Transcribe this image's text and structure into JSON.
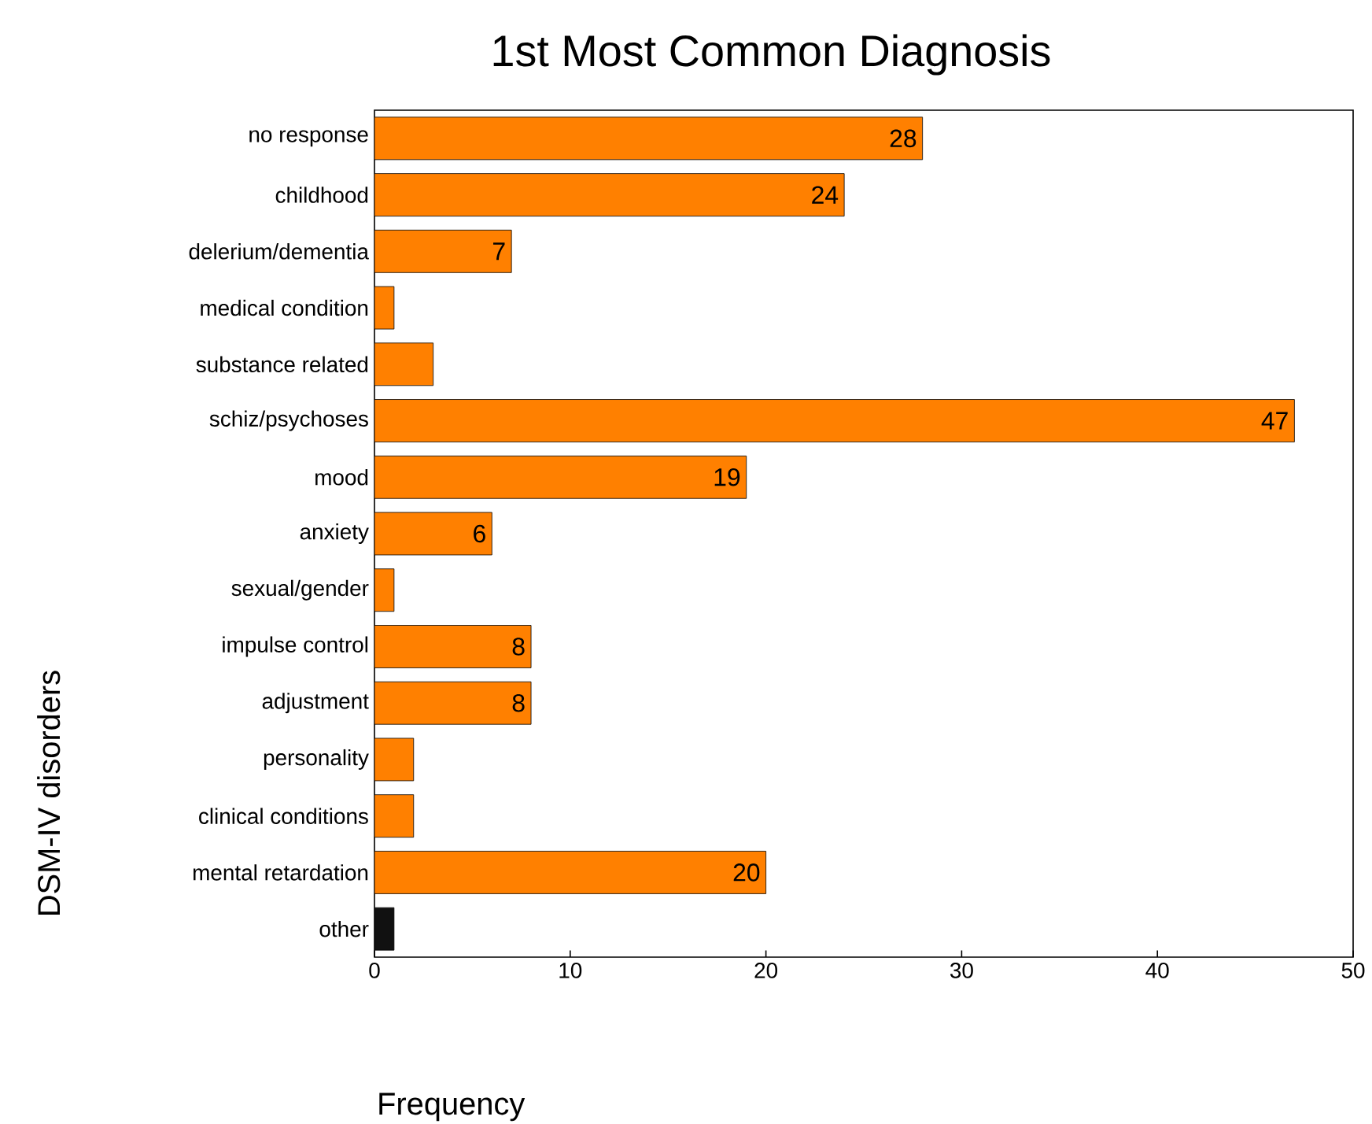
{
  "chart_data": {
    "type": "bar",
    "orientation": "horizontal",
    "title": "1st Most Common Diagnosis",
    "xlabel": "Frequency",
    "ylabel": "DSM-IV disorders",
    "categories": [
      "no response",
      "childhood",
      "delerium/dementia",
      "medical condition",
      "substance related",
      "schiz/psychoses",
      "mood",
      "anxiety",
      "sexual/gender",
      "impulse control",
      "adjustment",
      "personality",
      "clinical conditions",
      "mental retardation",
      "other"
    ],
    "values": [
      28,
      24,
      7,
      1,
      3,
      47,
      19,
      6,
      1,
      8,
      8,
      2,
      2,
      20,
      1
    ],
    "value_labels": [
      "28",
      "24",
      "7",
      null,
      null,
      "47",
      "19",
      "6",
      null,
      "8",
      "8",
      null,
      null,
      "20",
      null
    ],
    "colors": [
      "#ff8000",
      "#ff8000",
      "#ff8000",
      "#ff8000",
      "#ff8000",
      "#ff8000",
      "#ff8000",
      "#ff8000",
      "#ff8000",
      "#ff8000",
      "#ff8000",
      "#ff8000",
      "#ff8000",
      "#ff8000",
      "#111111"
    ],
    "xlim": [
      0,
      50
    ],
    "xticks": [
      0,
      10,
      20,
      30,
      40,
      50
    ],
    "grid": false
  }
}
